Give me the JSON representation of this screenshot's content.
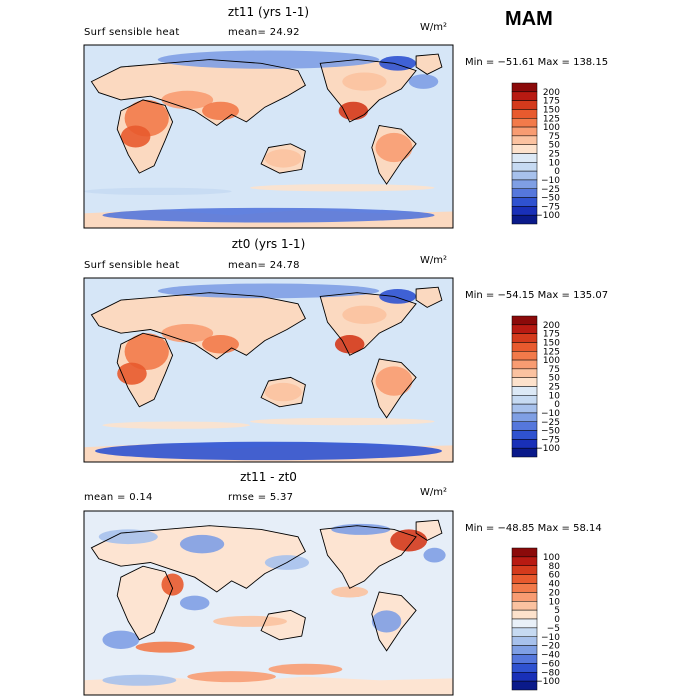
{
  "season": "MAM",
  "panels": [
    {
      "title": "zt11 (yrs 1-1)",
      "left_label": "Surf sensible heat",
      "stat": "mean=  24.92",
      "unit": "W/m²",
      "minmax": "Min = −51.61 Max =  138.15",
      "colorbar_labels": [
        "200",
        "175",
        "150",
        "125",
        "100",
        "75",
        "50",
        "25",
        "10",
        "0",
        "−10",
        "−25",
        "−50",
        "−75",
        "−100"
      ],
      "colorbar_colors": [
        "#8b0a0a",
        "#b81a12",
        "#d43a1c",
        "#e85a2e",
        "#f27a4a",
        "#f89c72",
        "#fbc2a0",
        "#fde2cc",
        "#dce9f6",
        "#c6daf2",
        "#a7c1ec",
        "#7f9fe4",
        "#5577dc",
        "#2f52d0",
        "#1930b8",
        "#0a1a8a"
      ],
      "map_land": "#fbd9c0",
      "map_ocean": "#d6e6f7"
    },
    {
      "title": "zt0 (yrs 1-1)",
      "left_label": "Surf sensible heat",
      "stat": "mean=  24.78",
      "unit": "W/m²",
      "minmax": "Min = −54.15 Max =  135.07",
      "colorbar_labels": [
        "200",
        "175",
        "150",
        "125",
        "100",
        "75",
        "50",
        "25",
        "10",
        "0",
        "−10",
        "−25",
        "−50",
        "−75",
        "−100"
      ],
      "colorbar_colors": [
        "#8b0a0a",
        "#b81a12",
        "#d43a1c",
        "#e85a2e",
        "#f27a4a",
        "#f89c72",
        "#fbc2a0",
        "#fde2cc",
        "#dce9f6",
        "#c6daf2",
        "#a7c1ec",
        "#7f9fe4",
        "#5577dc",
        "#2f52d0",
        "#1930b8",
        "#0a1a8a"
      ],
      "map_land": "#fbd9c0",
      "map_ocean": "#d6e6f7"
    },
    {
      "title": "zt11 - zt0",
      "left_label": "mean =    0.14",
      "stat": "rmse =    5.37",
      "unit": "W/m²",
      "minmax": "Min = −48.85 Max =   58.14",
      "colorbar_labels": [
        "100",
        "80",
        "60",
        "40",
        "20",
        "10",
        "5",
        "0",
        "−5",
        "−10",
        "−20",
        "−40",
        "−60",
        "−80",
        "−100"
      ],
      "colorbar_colors": [
        "#8b0a0a",
        "#b81a12",
        "#d43a1c",
        "#e85a2e",
        "#f27a4a",
        "#f89c72",
        "#fbc2a0",
        "#fde2cc",
        "#e9f0f8",
        "#c6daf2",
        "#a7c1ec",
        "#7f9fe4",
        "#5577dc",
        "#2f52d0",
        "#1930b8",
        "#0a1a8a"
      ],
      "map_land": "#fde4d2",
      "map_ocean": "#e6eef8"
    }
  ]
}
